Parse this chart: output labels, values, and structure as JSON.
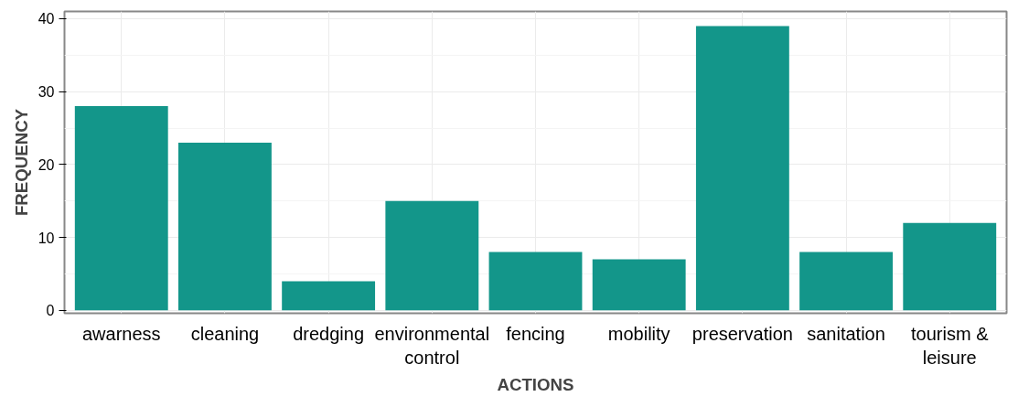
{
  "chart_data": {
    "type": "bar",
    "xlabel": "ACTIONS",
    "ylabel": "FREQUENCY",
    "categories": [
      "awarness",
      "cleaning",
      "dredging",
      "environmental control",
      "fencing",
      "mobility",
      "preservation",
      "sanitation",
      "tourism & leisure"
    ],
    "values": [
      28,
      23,
      4,
      15,
      8,
      7,
      39,
      8,
      12
    ],
    "color": "#13968a",
    "ylim": [
      -0.4,
      41
    ],
    "yticks": [
      0,
      10,
      20,
      30,
      40
    ],
    "grid": true
  }
}
